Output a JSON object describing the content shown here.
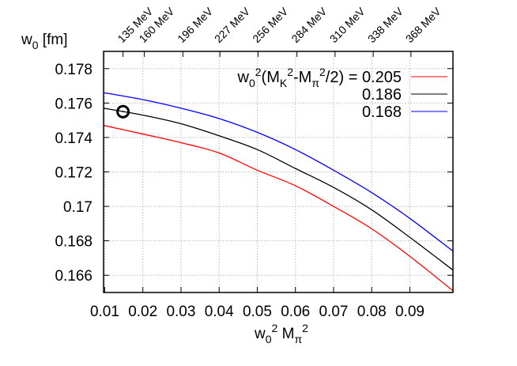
{
  "chart_data": {
    "type": "line",
    "title": "",
    "xlabel": {
      "base": "w",
      "sub1": "0",
      "sup1": "2",
      "mid": " M",
      "sub2": "π",
      "sup2": "2"
    },
    "ylabel": {
      "base": "w",
      "sub": "0",
      "rest": " [fm]"
    },
    "xlim": [
      0.0097,
      0.1013
    ],
    "ylim": [
      0.165,
      0.179
    ],
    "grid": true,
    "legend_position": "top-right",
    "legend_title": {
      "base": "w",
      "sub0": "0",
      "sup0": "2",
      "p1": "(M",
      "subK": "K",
      "supK": "2",
      "p2": "-M",
      "subpi": "π",
      "suppi": "2",
      "p3": "/2) = "
    },
    "x_ticks": [
      {
        "value": 0.01,
        "label": "0.01"
      },
      {
        "value": 0.02,
        "label": "0.02"
      },
      {
        "value": 0.03,
        "label": "0.03"
      },
      {
        "value": 0.04,
        "label": "0.04"
      },
      {
        "value": 0.05,
        "label": "0.05"
      },
      {
        "value": 0.06,
        "label": "0.06"
      },
      {
        "value": 0.07,
        "label": "0.07"
      },
      {
        "value": 0.08,
        "label": "0.08"
      },
      {
        "value": 0.09,
        "label": "0.09"
      }
    ],
    "y_ticks": [
      {
        "value": 0.166,
        "label": "0.166"
      },
      {
        "value": 0.168,
        "label": "0.168"
      },
      {
        "value": 0.17,
        "label": "0.17"
      },
      {
        "value": 0.172,
        "label": "0.172"
      },
      {
        "value": 0.174,
        "label": "0.174"
      },
      {
        "value": 0.176,
        "label": "0.176"
      },
      {
        "value": 0.178,
        "label": "0.178"
      }
    ],
    "top_ticks": [
      {
        "value": 0.0148,
        "label": "135 MeV"
      },
      {
        "value": 0.0204,
        "label": "160 MeV"
      },
      {
        "value": 0.0305,
        "label": "196 MeV"
      },
      {
        "value": 0.0402,
        "label": "227 MeV"
      },
      {
        "value": 0.0502,
        "label": "256 MeV"
      },
      {
        "value": 0.0604,
        "label": "284 MeV"
      },
      {
        "value": 0.0704,
        "label": "310 MeV"
      },
      {
        "value": 0.0804,
        "label": "338 MeV"
      },
      {
        "value": 0.0903,
        "label": "368 MeV"
      }
    ],
    "x": [
      0.0097,
      0.02,
      0.03,
      0.04,
      0.05,
      0.06,
      0.07,
      0.08,
      0.09,
      0.1013
    ],
    "series": [
      {
        "name": "0.205",
        "color": "#ff0000",
        "values": [
          0.1747,
          0.1742,
          0.1737,
          0.1731,
          0.1721,
          0.1712,
          0.17,
          0.1687,
          0.1671,
          0.1651
        ]
      },
      {
        "name": "0.186",
        "color": "#000000",
        "values": [
          0.1757,
          0.1753,
          0.1748,
          0.1741,
          0.1733,
          0.1722,
          0.1711,
          0.1698,
          0.1682,
          0.1663
        ]
      },
      {
        "name": "0.168",
        "color": "#0000ff",
        "values": [
          0.1766,
          0.1762,
          0.1757,
          0.1751,
          0.1743,
          0.1733,
          0.1721,
          0.1708,
          0.1693,
          0.1674
        ]
      }
    ],
    "points": [
      {
        "x": 0.0148,
        "y": 0.1755,
        "marker": "open-circle",
        "color": "#000000"
      }
    ]
  }
}
